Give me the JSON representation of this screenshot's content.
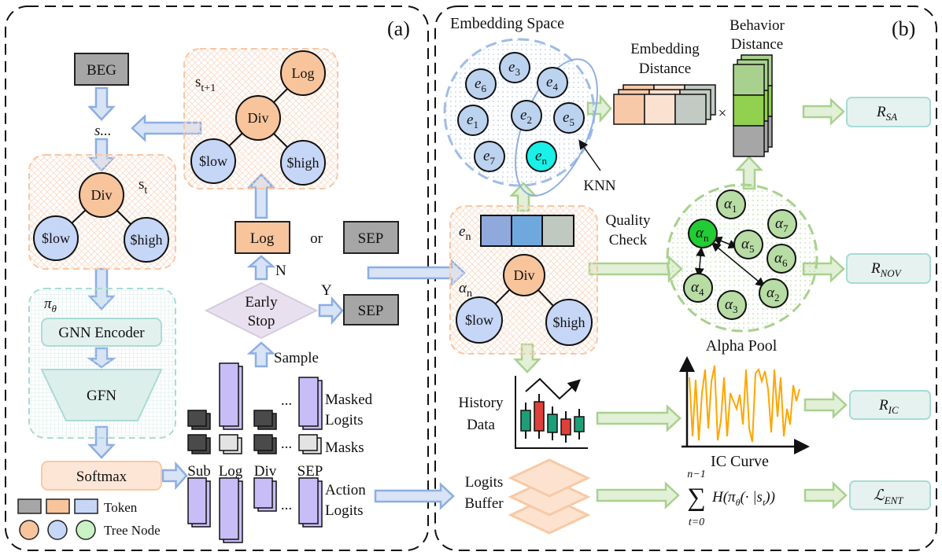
{
  "panel_a": {
    "label": "(a)",
    "beg": "BEG",
    "s_dots": "s...",
    "state_next": {
      "base": "s",
      "sub": "t+1"
    },
    "state_current": {
      "base": "s",
      "sub": "t"
    },
    "nodes": {
      "div": "Div",
      "log": "Log",
      "low": "$low",
      "high": "$high"
    },
    "log_token": "Log",
    "or": "or",
    "sep_token": "SEP",
    "n_label": "N",
    "y_label": "Y",
    "early_stop": [
      "Early",
      "Stop"
    ],
    "sample": "Sample",
    "policy": {
      "base": "π",
      "sub": "θ"
    },
    "gnn_encoder": "GNN Encoder",
    "gfn": "GFN",
    "softmax": "Softmax",
    "legend": {
      "token": "Token",
      "tree_node": "Tree Node"
    },
    "logits": {
      "columns": [
        "Sub",
        "Log",
        "Div",
        "SEP"
      ],
      "masked": [
        "Masked",
        "Logits"
      ],
      "masks": "Masks",
      "action": [
        "Action",
        "Logits"
      ],
      "ellipsis": "..."
    }
  },
  "panel_b": {
    "label": "(b)",
    "embedding_space": "Embedding Space",
    "embeddings": [
      {
        "base": "e",
        "sub": "6"
      },
      {
        "base": "e",
        "sub": "3"
      },
      {
        "base": "e",
        "sub": "4"
      },
      {
        "base": "e",
        "sub": "1"
      },
      {
        "base": "e",
        "sub": "2"
      },
      {
        "base": "e",
        "sub": "5"
      },
      {
        "base": "e",
        "sub": "7"
      },
      {
        "base": "e",
        "sub": "n"
      }
    ],
    "knn": "KNN",
    "embedding_distance": [
      "Embedding",
      "Distance"
    ],
    "times": "×",
    "behavior_distance": [
      "Behavior",
      "Distance"
    ],
    "quality_check": [
      "Quality",
      "Check"
    ],
    "alpha_vector": {
      "base": "e",
      "sub": "n"
    },
    "alpha_label": {
      "base": "α",
      "sub": "n"
    },
    "nodes": {
      "div": "Div",
      "low": "$low",
      "high": "$high"
    },
    "alphas": [
      {
        "base": "α",
        "sub": "1"
      },
      {
        "base": "α",
        "sub": "7"
      },
      {
        "base": "α",
        "sub": "n"
      },
      {
        "base": "α",
        "sub": "5"
      },
      {
        "base": "α",
        "sub": "6"
      },
      {
        "base": "α",
        "sub": "4"
      },
      {
        "base": "α",
        "sub": "3"
      },
      {
        "base": "α",
        "sub": "2"
      }
    ],
    "alpha_pool": "Alpha Pool",
    "history_data": [
      "History",
      "Data"
    ],
    "ic_curve": "IC Curve",
    "logits_buffer": [
      "Logits",
      "Buffer"
    ],
    "formula": {
      "upper": "n−1",
      "lower": "t=0",
      "sigma": "∑",
      "h": "H(π",
      "theta": "θ",
      "mid": "(· |s",
      "t": "t",
      "end": "))"
    },
    "rewards": {
      "sa": {
        "base": "R",
        "sub": "SA"
      },
      "nov": {
        "base": "R",
        "sub": "NOV"
      },
      "ic": {
        "base": "R",
        "sub": "IC"
      },
      "ent": {
        "base": "ℒ",
        "sub": "ENT"
      }
    }
  },
  "colors": {
    "orange_node": "#f8c49c",
    "blue_node": "#c6d6f6",
    "green_node": "#b7dca4",
    "highlight_green": "#22cc33",
    "cyan": "#19f0e8",
    "logit_bar": "#c8bdf6",
    "blue_arrow": "#d8e3f6",
    "green_arrow": "#e2f0d8",
    "ic_line": "#ffa500"
  }
}
